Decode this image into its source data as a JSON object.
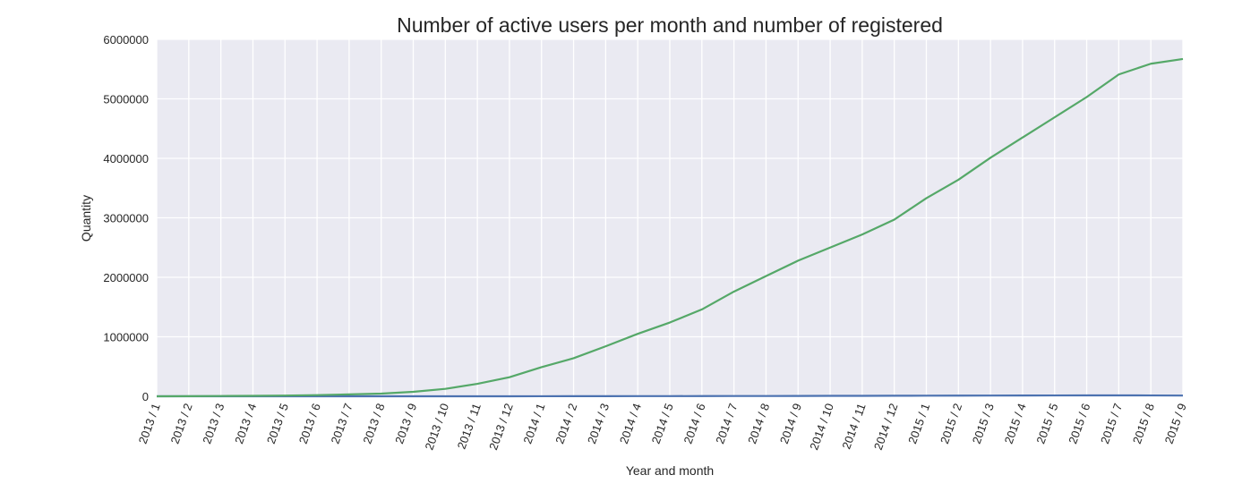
{
  "chart_data": {
    "type": "line",
    "title": "Number of active users per month and number of registered",
    "xlabel": "Year and month",
    "ylabel": "Quantity",
    "ylim": [
      0,
      6000000
    ],
    "yticks": [
      "0",
      "1000000",
      "2000000",
      "3000000",
      "4000000",
      "5000000",
      "6000000"
    ],
    "grid": true,
    "background_color": "#eaeaf2",
    "categories": [
      "2013 / 1",
      "2013 / 2",
      "2013 / 3",
      "2013 / 4",
      "2013 / 5",
      "2013 / 6",
      "2013 / 7",
      "2013 / 8",
      "2013 / 9",
      "2013 / 10",
      "2013 / 11",
      "2013 / 12",
      "2014 / 1",
      "2014 / 2",
      "2014 / 3",
      "2014 / 4",
      "2014 / 5",
      "2014 / 6",
      "2014 / 7",
      "2014 / 8",
      "2014 / 9",
      "2014 / 10",
      "2014 / 11",
      "2014 / 12",
      "2015 / 1",
      "2015 / 2",
      "2015 / 3",
      "2015 / 4",
      "2015 / 5",
      "2015 / 6",
      "2015 / 7",
      "2015 / 8",
      "2015 / 9"
    ],
    "series": [
      {
        "color": "#4c72b0",
        "values": [
          0,
          0,
          0,
          0,
          0,
          0,
          0,
          0,
          0,
          0,
          0,
          500,
          1000,
          1500,
          2000,
          2500,
          3000,
          3500,
          4500,
          5000,
          6000,
          7000,
          8000,
          9000,
          10000,
          11000,
          12000,
          13000,
          14000,
          15000,
          15500,
          14000,
          12000
        ]
      },
      {
        "color": "#55a868",
        "values": [
          0,
          2000,
          5000,
          8000,
          12000,
          20000,
          32000,
          45000,
          75000,
          125000,
          210000,
          320000,
          490000,
          640000,
          840000,
          1050000,
          1240000,
          1460000,
          1760000,
          2020000,
          2280000,
          2500000,
          2720000,
          2970000,
          3330000,
          3640000,
          4010000,
          4350000,
          4690000,
          5030000,
          5410000,
          5590000,
          5670000
        ]
      }
    ]
  }
}
